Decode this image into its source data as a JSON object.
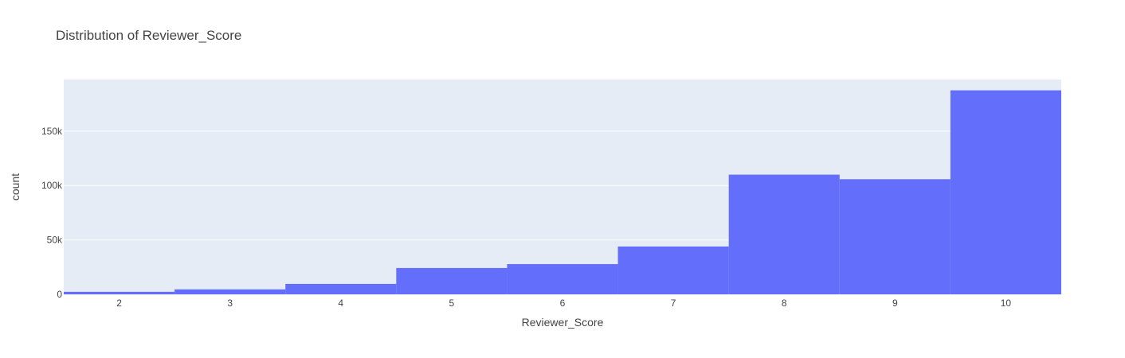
{
  "chart_data": {
    "type": "bar",
    "title": "Distribution of Reviewer_Score",
    "xlabel": "Reviewer_Score",
    "ylabel": "count",
    "categories": [
      2,
      3,
      4,
      5,
      6,
      7,
      8,
      9,
      10
    ],
    "values": [
      2300,
      4600,
      9600,
      24200,
      27800,
      44000,
      110000,
      105800,
      187500
    ],
    "x_ticks": [
      "2",
      "3",
      "4",
      "5",
      "6",
      "7",
      "8",
      "9",
      "10"
    ],
    "y_ticks": [
      {
        "value": 0,
        "label": "0"
      },
      {
        "value": 50000,
        "label": "50k"
      },
      {
        "value": 100000,
        "label": "100k"
      },
      {
        "value": 150000,
        "label": "150k"
      }
    ],
    "ylim": [
      0,
      197400
    ],
    "xlim": [
      1.5,
      10.5
    ],
    "grid": true,
    "bar_color": "#636efa",
    "plot_bg": "#e5ecf6",
    "grid_color": "#ffffff"
  }
}
